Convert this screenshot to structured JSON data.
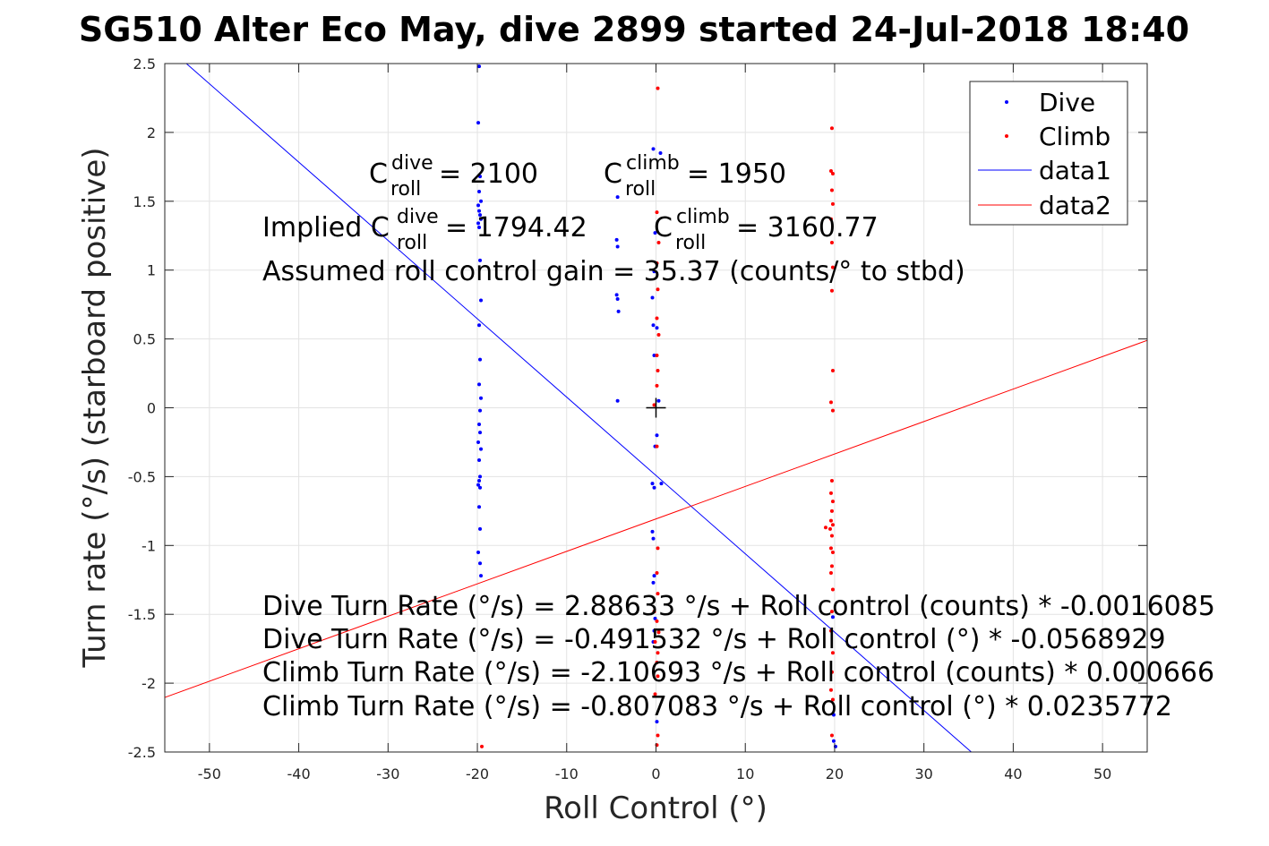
{
  "chart_data": {
    "type": "scatter",
    "title": "SG510 Alter Eco May, dive 2899 started 24-Jul-2018 18:40",
    "xlabel": "Roll Control (°)",
    "ylabel": "Turn rate (°/s) (starboard positive)",
    "xlim": [
      -55,
      55
    ],
    "ylim": [
      -2.5,
      2.5
    ],
    "xticks": [
      -50,
      -40,
      -30,
      -20,
      -10,
      0,
      10,
      20,
      30,
      40,
      50
    ],
    "xtick_labels": [
      "-50",
      "-40",
      "-30",
      "-20",
      "-10",
      "0",
      "10",
      "20",
      "30",
      "40",
      "50"
    ],
    "yticks": [
      -2.5,
      -2,
      -1.5,
      -1,
      -0.5,
      0,
      0.5,
      1,
      1.5,
      2,
      2.5
    ],
    "ytick_labels": [
      "-2.5",
      "-2",
      "-1.5",
      "-1",
      "-0.5",
      "0",
      "0.5",
      "1",
      "1.5",
      "2",
      "2.5"
    ],
    "grid": true,
    "legend_location": "top-right",
    "series": [
      {
        "name": "Dive",
        "kind": "scatter",
        "color": "#0000ff",
        "points": [
          [
            -19.8,
            2.48
          ],
          [
            -19.9,
            2.07
          ],
          [
            -19.7,
            1.68
          ],
          [
            -19.8,
            1.57
          ],
          [
            -19.6,
            1.5
          ],
          [
            -19.9,
            1.47
          ],
          [
            -19.8,
            1.43
          ],
          [
            -19.7,
            1.4
          ],
          [
            -19.6,
            1.37
          ],
          [
            -19.9,
            1.34
          ],
          [
            -19.8,
            1.31
          ],
          [
            -19.7,
            1.07
          ],
          [
            -19.6,
            0.78
          ],
          [
            -19.8,
            0.6
          ],
          [
            -19.7,
            0.35
          ],
          [
            -19.8,
            0.17
          ],
          [
            -19.6,
            0.07
          ],
          [
            -19.7,
            -0.02
          ],
          [
            -19.8,
            -0.12
          ],
          [
            -19.7,
            -0.18
          ],
          [
            -19.9,
            -0.25
          ],
          [
            -19.6,
            -0.3
          ],
          [
            -19.8,
            -0.38
          ],
          [
            -19.7,
            -0.5
          ],
          [
            -19.8,
            -0.53
          ],
          [
            -19.9,
            -0.56
          ],
          [
            -19.7,
            -0.58
          ],
          [
            -19.8,
            -0.72
          ],
          [
            -19.7,
            -0.88
          ],
          [
            -19.9,
            -1.05
          ],
          [
            -19.7,
            -1.13
          ],
          [
            -19.6,
            -1.22
          ],
          [
            -4.3,
            1.53
          ],
          [
            -4.4,
            1.22
          ],
          [
            -4.3,
            1.17
          ],
          [
            -4.4,
            0.82
          ],
          [
            -4.3,
            0.79
          ],
          [
            -4.2,
            0.7
          ],
          [
            -4.3,
            0.05
          ],
          [
            -0.3,
            1.88
          ],
          [
            0.5,
            1.85
          ],
          [
            -0.1,
            1.27
          ],
          [
            -0.2,
            0.99
          ],
          [
            -0.4,
            0.8
          ],
          [
            -0.3,
            0.6
          ],
          [
            0.1,
            0.58
          ],
          [
            -0.2,
            0.38
          ],
          [
            0.3,
            0.05
          ],
          [
            0.1,
            -0.2
          ],
          [
            -0.1,
            -0.28
          ],
          [
            -0.4,
            -0.55
          ],
          [
            -0.2,
            -0.58
          ],
          [
            0.6,
            -0.55
          ],
          [
            -0.4,
            -0.9
          ],
          [
            -0.3,
            -0.95
          ],
          [
            -0.2,
            -1.22
          ],
          [
            -0.3,
            -1.27
          ],
          [
            -0.1,
            -1.53
          ],
          [
            -0.2,
            -1.62
          ],
          [
            -0.3,
            -1.7
          ],
          [
            0.1,
            -2.28
          ],
          [
            19.8,
            -1.52
          ],
          [
            19.9,
            -2.23
          ],
          [
            19.9,
            -2.42
          ],
          [
            20.1,
            -2.46
          ]
        ]
      },
      {
        "name": "Climb",
        "kind": "scatter",
        "color": "#ff0000",
        "points": [
          [
            0.2,
            2.32
          ],
          [
            0.1,
            1.42
          ],
          [
            0.3,
            1.2
          ],
          [
            0.1,
            1.05
          ],
          [
            0.2,
            0.86
          ],
          [
            0.1,
            0.65
          ],
          [
            0.3,
            0.53
          ],
          [
            0.1,
            0.38
          ],
          [
            0.2,
            0.27
          ],
          [
            0.1,
            0.16
          ],
          [
            -0.2,
            0.02
          ],
          [
            0.1,
            -0.28
          ],
          [
            0.2,
            -1.02
          ],
          [
            0.1,
            -1.2
          ],
          [
            0.2,
            -1.35
          ],
          [
            -0.2,
            -1.48
          ],
          [
            0.1,
            -1.55
          ],
          [
            0.3,
            -1.63
          ],
          [
            -0.1,
            -1.7
          ],
          [
            0.2,
            -1.78
          ],
          [
            0.1,
            -1.85
          ],
          [
            0.2,
            -1.95
          ],
          [
            -0.1,
            -2.08
          ],
          [
            0.2,
            -2.38
          ],
          [
            0.1,
            -2.45
          ],
          [
            -19.5,
            -2.46
          ],
          [
            19.7,
            2.03
          ],
          [
            19.6,
            1.72
          ],
          [
            19.8,
            1.7
          ],
          [
            19.7,
            1.58
          ],
          [
            19.8,
            1.48
          ],
          [
            19.6,
            1.37
          ],
          [
            19.7,
            1.2
          ],
          [
            19.8,
            1.02
          ],
          [
            19.7,
            0.85
          ],
          [
            19.8,
            0.27
          ],
          [
            19.6,
            0.04
          ],
          [
            19.8,
            -0.02
          ],
          [
            19.7,
            -0.53
          ],
          [
            19.6,
            -0.62
          ],
          [
            19.8,
            -0.68
          ],
          [
            19.7,
            -0.75
          ],
          [
            19.6,
            -0.82
          ],
          [
            19.8,
            -0.85
          ],
          [
            19.5,
            -0.88
          ],
          [
            19.0,
            -0.87
          ],
          [
            19.7,
            -0.93
          ],
          [
            19.6,
            -1.02
          ],
          [
            19.8,
            -1.05
          ],
          [
            19.7,
            -1.15
          ],
          [
            19.6,
            -1.2
          ],
          [
            19.8,
            -1.32
          ],
          [
            19.7,
            -1.48
          ],
          [
            19.6,
            -1.62
          ],
          [
            19.8,
            -1.78
          ],
          [
            19.7,
            -1.92
          ],
          [
            19.6,
            -2.05
          ],
          [
            19.8,
            -2.12
          ],
          [
            19.7,
            -2.38
          ]
        ]
      },
      {
        "name": "data1",
        "kind": "line",
        "color": "#0000ff",
        "intercept": -0.491532,
        "slope": -0.0568929
      },
      {
        "name": "data2",
        "kind": "line",
        "color": "#ff0000",
        "intercept": -0.807083,
        "slope": 0.0235772
      }
    ],
    "center_marker": {
      "symbol": "+",
      "x": 0,
      "y": 0
    },
    "annotations": {
      "c_dive": {
        "base": "C",
        "sup": "dive",
        "sub": "roll",
        "rest": " = 2100"
      },
      "c_climb": {
        "base": "C",
        "sup": "climb",
        "sub": "roll",
        "rest": " = 1950"
      },
      "implied_dive": {
        "prefix": "Implied C",
        "sup": "dive",
        "sub": "roll",
        "rest": " = 1794.42"
      },
      "implied_climb": {
        "base": "C",
        "sup": "climb",
        "sub": "roll",
        "rest": " = 3160.77"
      },
      "gain": "Assumed roll control gain = 35.37 (counts/° to stbd)",
      "eq1": "Dive Turn Rate (°/s) = 2.88633 °/s + Roll control (counts) * -0.0016085",
      "eq2": "Dive Turn Rate (°/s) = -0.491532 °/s + Roll control (°) * -0.0568929",
      "eq3": "Climb Turn Rate (°/s) = -2.10693 °/s + Roll control (counts) * 0.000666",
      "eq4": "Climb Turn Rate (°/s) = -0.807083 °/s + Roll control (°) * 0.0235772"
    }
  }
}
